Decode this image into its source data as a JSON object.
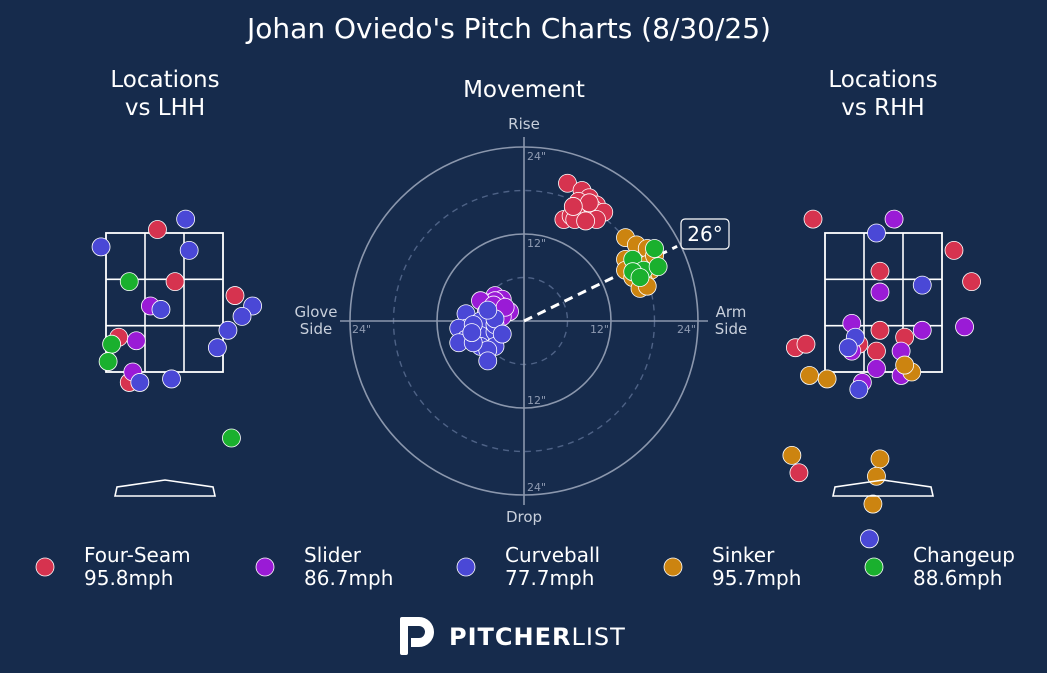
{
  "title": "Johan Oviedo's Pitch Charts (8/30/25)",
  "panels": {
    "lhh_title_1": "Locations",
    "lhh_title_2": "vs LHH",
    "movement_title": "Movement",
    "rhh_title_1": "Locations",
    "rhh_title_2": "vs RHH"
  },
  "movement_axes": {
    "rise": "Rise",
    "drop": "Drop",
    "glove_1": "Glove",
    "glove_2": "Side",
    "arm_1": "Arm",
    "arm_2": "Side",
    "rings": [
      "12\"",
      "24\""
    ],
    "arm_angle_label": "26°"
  },
  "colors": {
    "background": "#162b4c",
    "Four-Seam": "#d6334f",
    "Slider": "#9a1bd6",
    "Curveball": "#4a48d6",
    "Sinker": "#cc8410",
    "Changeup": "#1ab02e"
  },
  "legend": [
    {
      "name": "Four-Seam",
      "velo": "95.8mph",
      "color": "#d6334f"
    },
    {
      "name": "Slider",
      "velo": "86.7mph",
      "color": "#9a1bd6"
    },
    {
      "name": "Curveball",
      "velo": "77.7mph",
      "color": "#4a48d6"
    },
    {
      "name": "Sinker",
      "velo": "95.7mph",
      "color": "#cc8410"
    },
    {
      "name": "Changeup",
      "velo": "88.6mph",
      "color": "#1ab02e"
    }
  ],
  "brand": {
    "bold": "PITCHER",
    "light": "LIST"
  },
  "chart_data": [
    {
      "type": "scatter",
      "title": "Movement",
      "xlabel": "Glove Side / Arm Side",
      "ylabel": "Drop / Rise",
      "xlim": [
        -24,
        24
      ],
      "ylim": [
        -24,
        24
      ],
      "units": "inches",
      "arm_angle_deg": 26,
      "series": [
        {
          "name": "Four-Seam",
          "points": [
            [
              6,
              19
            ],
            [
              8,
              18
            ],
            [
              9,
              17
            ],
            [
              7.5,
              16.5
            ],
            [
              10,
              16
            ],
            [
              5.5,
              14
            ],
            [
              6.5,
              14.5
            ],
            [
              8,
              15
            ],
            [
              9.5,
              15.5
            ],
            [
              11,
              15
            ],
            [
              10,
              14
            ],
            [
              7,
              14
            ],
            [
              8.5,
              13.8
            ],
            [
              9,
              16.3
            ],
            [
              6.8,
              15.8
            ]
          ]
        },
        {
          "name": "Sinker",
          "points": [
            [
              14,
              11.5
            ],
            [
              15.5,
              10.5
            ],
            [
              17,
              10
            ],
            [
              14,
              8.5
            ],
            [
              15,
              8
            ],
            [
              16,
              7.5
            ],
            [
              17.5,
              7
            ],
            [
              14,
              7
            ],
            [
              15,
              6
            ],
            [
              16.5,
              5.5
            ],
            [
              17,
              7.8
            ],
            [
              18,
              9
            ],
            [
              16,
              4.5
            ],
            [
              17,
              4.8
            ]
          ]
        },
        {
          "name": "Changeup",
          "points": [
            [
              18,
              10
            ],
            [
              15,
              8.5
            ],
            [
              16.5,
              7
            ],
            [
              18.5,
              7.5
            ],
            [
              15,
              6.8
            ],
            [
              16,
              6
            ]
          ]
        },
        {
          "name": "Slider",
          "points": [
            [
              -4,
              3.5
            ],
            [
              -3,
              3
            ],
            [
              -5,
              2.5
            ],
            [
              -3,
              2
            ],
            [
              -4,
              1.5
            ],
            [
              -5,
              1.8
            ],
            [
              -3,
              1.6
            ],
            [
              -4,
              2.8
            ],
            [
              -6,
              2.8
            ],
            [
              -2,
              1.3
            ],
            [
              -3.5,
              1
            ],
            [
              -4.2,
              2.2
            ],
            [
              -5.2,
              1.2
            ],
            [
              -3,
              0.6
            ],
            [
              -2.6,
              1.9
            ]
          ]
        },
        {
          "name": "Curveball",
          "points": [
            [
              -8,
              1
            ],
            [
              -6,
              0
            ],
            [
              -8,
              -1
            ],
            [
              -6,
              -2
            ],
            [
              -4,
              -1.5
            ],
            [
              -9,
              -1
            ],
            [
              -8,
              -2.5
            ],
            [
              -6,
              -3.5
            ],
            [
              -4,
              -3.5
            ],
            [
              -5,
              -4
            ],
            [
              -7,
              -0.5
            ],
            [
              -4,
              -0.5
            ],
            [
              -9,
              -3
            ],
            [
              -7,
              -3
            ],
            [
              -5,
              -5.5
            ],
            [
              -4,
              0.3
            ],
            [
              -5,
              1.5
            ],
            [
              -3,
              -1.8
            ],
            [
              -7.2,
              -1.6
            ]
          ]
        }
      ]
    },
    {
      "type": "scatter",
      "title": "Locations vs LHH",
      "note": "pitch locations relative to strike zone (plate_x ft, plate_z ft), catcher view",
      "series": [
        {
          "name": "Four-Seam",
          "points": [
            [
              -1.1,
              3.65
            ],
            [
              -0.1,
              3.55
            ],
            [
              1.8,
              3.65
            ],
            [
              0.15,
              2.8
            ],
            [
              1.0,
              2.6
            ],
            [
              -0.65,
              2.0
            ],
            [
              -0.5,
              1.35
            ]
          ]
        },
        {
          "name": "Slider",
          "points": [
            [
              -0.2,
              2.45
            ],
            [
              -0.4,
              1.95
            ],
            [
              -0.45,
              1.5
            ],
            [
              1.5,
              1.2
            ],
            [
              -1.35,
              0.5
            ]
          ]
        },
        {
          "name": "Curveball",
          "points": [
            [
              -0.9,
              3.3
            ],
            [
              0.3,
              3.7
            ],
            [
              0.35,
              3.25
            ],
            [
              2.2,
              4.35
            ],
            [
              -0.05,
              2.4
            ],
            [
              1.25,
              2.45
            ],
            [
              1.1,
              2.3
            ],
            [
              0.9,
              2.1
            ],
            [
              1.5,
              1.85
            ],
            [
              0.75,
              1.85
            ],
            [
              -0.35,
              1.35
            ],
            [
              0.1,
              1.4
            ],
            [
              2.2,
              1.7
            ]
          ]
        },
        {
          "name": "Changeup",
          "points": [
            [
              -0.5,
              2.8
            ],
            [
              1.55,
              2.85
            ],
            [
              -0.75,
              1.9
            ],
            [
              -0.8,
              1.65
            ],
            [
              0.95,
              0.55
            ]
          ]
        }
      ]
    },
    {
      "type": "scatter",
      "title": "Locations vs RHH",
      "note": "pitch locations relative to strike zone (plate_x ft, plate_z ft), catcher view",
      "series": [
        {
          "name": "Four-Seam",
          "points": [
            [
              -1.0,
              3.7
            ],
            [
              1.0,
              3.25
            ],
            [
              -0.05,
              2.95
            ],
            [
              1.25,
              2.8
            ],
            [
              -0.05,
              2.1
            ],
            [
              0.3,
              2.0
            ],
            [
              -0.35,
              1.9
            ],
            [
              -0.1,
              1.8
            ],
            [
              -1.55,
              1.65
            ],
            [
              -1.65,
              1.45
            ],
            [
              -1.25,
              1.85
            ],
            [
              -1.1,
              1.9
            ],
            [
              -1.7,
              0.1
            ],
            [
              -1.2,
              0.05
            ],
            [
              2.1,
              2.45
            ]
          ]
        },
        {
          "name": "Slider",
          "points": [
            [
              0.15,
              3.7
            ],
            [
              -0.05,
              2.65
            ],
            [
              1.15,
              2.15
            ],
            [
              0.55,
              2.1
            ],
            [
              -0.45,
              2.2
            ],
            [
              -0.45,
              1.8
            ],
            [
              0.25,
              1.8
            ],
            [
              -0.1,
              1.55
            ],
            [
              0.25,
              1.45
            ],
            [
              -0.3,
              1.35
            ],
            [
              -1.7,
              0.3
            ],
            [
              -1.6,
              1.6
            ],
            [
              -2.5,
              2.8
            ]
          ]
        },
        {
          "name": "Curveball",
          "points": [
            [
              -0.1,
              3.5
            ],
            [
              0.55,
              2.75
            ],
            [
              -0.4,
              2.0
            ],
            [
              -0.5,
              1.85
            ],
            [
              -0.35,
              1.25
            ],
            [
              -0.2,
              -0.9
            ]
          ]
        },
        {
          "name": "Sinker",
          "points": [
            [
              -1.05,
              1.45
            ],
            [
              -0.8,
              1.4
            ],
            [
              0.4,
              1.5
            ],
            [
              0.3,
              1.6
            ],
            [
              1.8,
              2.0
            ],
            [
              -1.3,
              0.3
            ],
            [
              -0.05,
              0.25
            ],
            [
              -0.1,
              0.0
            ],
            [
              -0.15,
              -0.4
            ],
            [
              1.8,
              0.25
            ]
          ]
        }
      ]
    }
  ]
}
